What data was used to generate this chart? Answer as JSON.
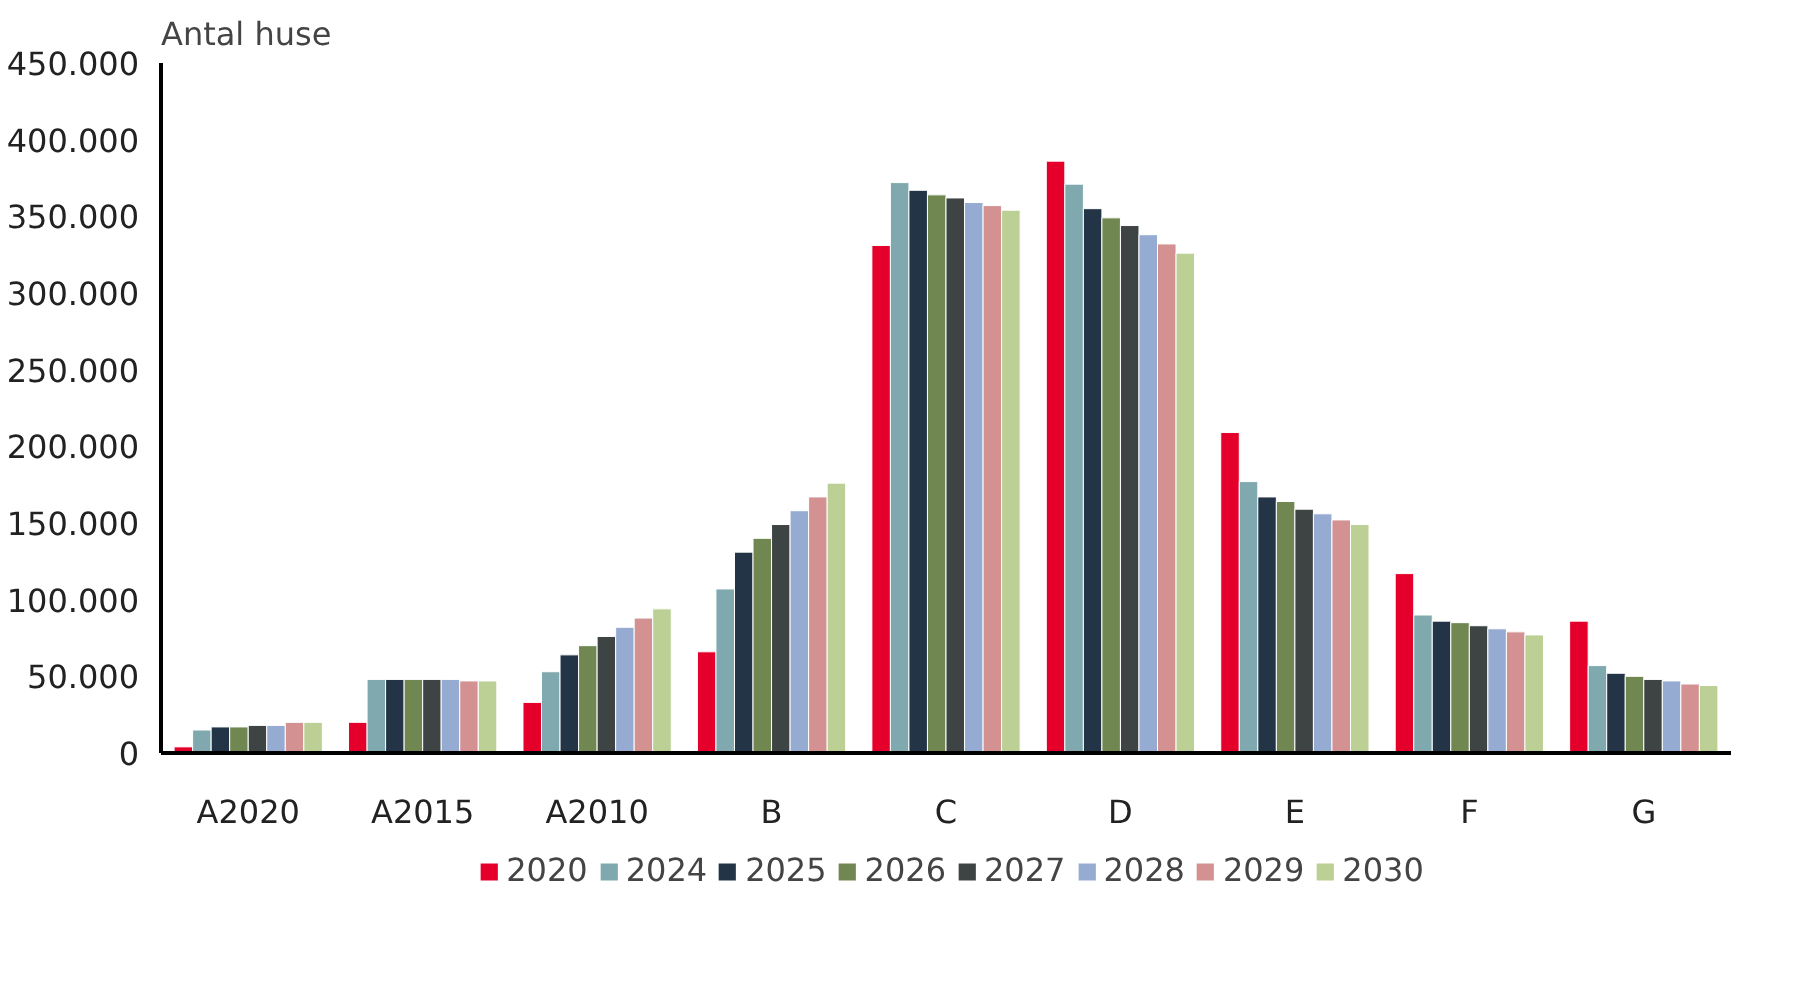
{
  "chart_data": {
    "type": "bar",
    "ylabel": "Antal huse",
    "categories": [
      "A2020",
      "A2015",
      "A2010",
      "B",
      "C",
      "D",
      "E",
      "F",
      "G"
    ],
    "ylim": [
      0,
      450000
    ],
    "yticks": [
      {
        "value": 0,
        "label": "0"
      },
      {
        "value": 50000,
        "label": "50.000"
      },
      {
        "value": 100000,
        "label": "100.000"
      },
      {
        "value": 150000,
        "label": "150.000"
      },
      {
        "value": 200000,
        "label": "200.000"
      },
      {
        "value": 250000,
        "label": "250.000"
      },
      {
        "value": 300000,
        "label": "300.000"
      },
      {
        "value": 350000,
        "label": "350.000"
      },
      {
        "value": 400000,
        "label": "400.000"
      },
      {
        "value": 450000,
        "label": "450.000"
      }
    ],
    "grid": false,
    "legend": "bottom",
    "series": [
      {
        "name": "2020",
        "color": "#e4002b",
        "values": [
          4000,
          20000,
          33000,
          66000,
          331000,
          386000,
          209000,
          117000,
          86000
        ]
      },
      {
        "name": "2024",
        "color": "#7fa9ae",
        "values": [
          15000,
          48000,
          53000,
          107000,
          372000,
          371000,
          177000,
          90000,
          57000
        ]
      },
      {
        "name": "2025",
        "color": "#243447",
        "values": [
          17000,
          48000,
          64000,
          131000,
          367000,
          355000,
          167000,
          86000,
          52000
        ]
      },
      {
        "name": "2026",
        "color": "#708751",
        "values": [
          17000,
          48000,
          70000,
          140000,
          364000,
          349000,
          164000,
          85000,
          50000
        ]
      },
      {
        "name": "2027",
        "color": "#3e4444",
        "values": [
          18000,
          48000,
          76000,
          149000,
          362000,
          344000,
          159000,
          83000,
          48000
        ]
      },
      {
        "name": "2028",
        "color": "#95abd1",
        "values": [
          18000,
          48000,
          82000,
          158000,
          359000,
          338000,
          156000,
          81000,
          47000
        ]
      },
      {
        "name": "2029",
        "color": "#d39191",
        "values": [
          20000,
          47000,
          88000,
          167000,
          357000,
          332000,
          152000,
          79000,
          45000
        ]
      },
      {
        "name": "2030",
        "color": "#bccf95",
        "values": [
          20000,
          47000,
          94000,
          176000,
          354000,
          326000,
          149000,
          77000,
          44000
        ]
      }
    ]
  }
}
